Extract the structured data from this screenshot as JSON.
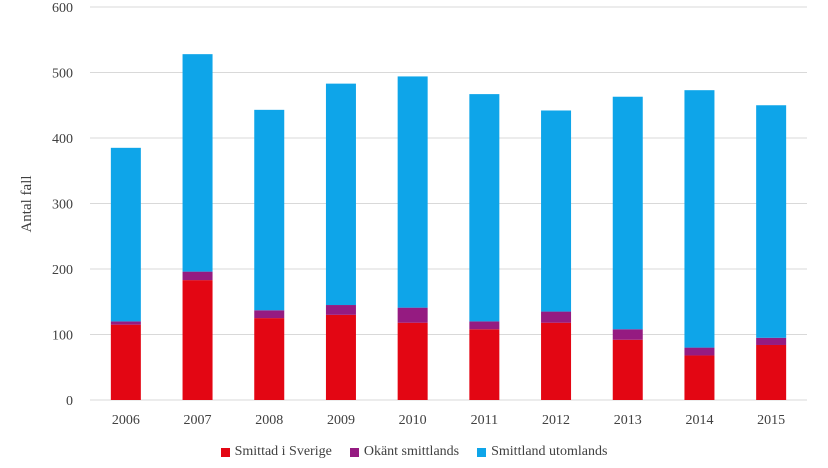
{
  "chart_data": {
    "type": "bar",
    "stacked": true,
    "categories": [
      "2006",
      "2007",
      "2008",
      "2009",
      "2010",
      "2011",
      "2012",
      "2013",
      "2014",
      "2015"
    ],
    "series": [
      {
        "name": "Smittad i Sverige",
        "color": "#e30613",
        "values": [
          115,
          183,
          125,
          130,
          118,
          108,
          118,
          92,
          68,
          84
        ]
      },
      {
        "name": "Okänt smittlands",
        "color": "#951b81",
        "values": [
          5,
          13,
          12,
          15,
          23,
          12,
          17,
          16,
          12,
          11
        ]
      },
      {
        "name": "Smittland utomlands",
        "color": "#0ea5e9",
        "values": [
          265,
          332,
          306,
          338,
          353,
          347,
          307,
          355,
          393,
          355
        ]
      }
    ],
    "ylabel": "Antal fall",
    "ylim": [
      0,
      600
    ],
    "yticks": [
      "0",
      "100",
      "200",
      "300",
      "400",
      "500",
      "600"
    ],
    "grid": true,
    "legend_position": "bottom"
  }
}
